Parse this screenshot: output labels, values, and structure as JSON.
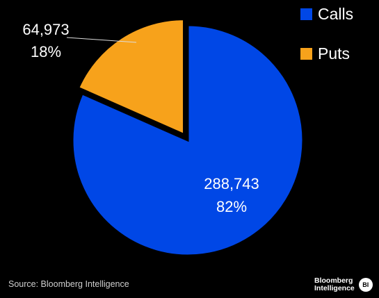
{
  "chart_data": {
    "type": "pie",
    "title": "",
    "slices": [
      {
        "name": "Calls",
        "value": 288743,
        "value_label": "288,743",
        "percent_label": "82%",
        "color": "#0047e6"
      },
      {
        "name": "Puts",
        "value": 64973,
        "value_label": "64,973",
        "percent_label": "18%",
        "color": "#f7a21b"
      }
    ],
    "legend": {
      "position": "top-right"
    },
    "exploded_slice": "Puts"
  },
  "footer": {
    "source": "Source: Bloomberg Intelligence",
    "brand_line1": "Bloomberg",
    "brand_line2": "Intelligence",
    "brand_badge": "BI"
  },
  "colors": {
    "background": "#000000",
    "text": "#ffffff",
    "leader_line": "#dddddd"
  }
}
